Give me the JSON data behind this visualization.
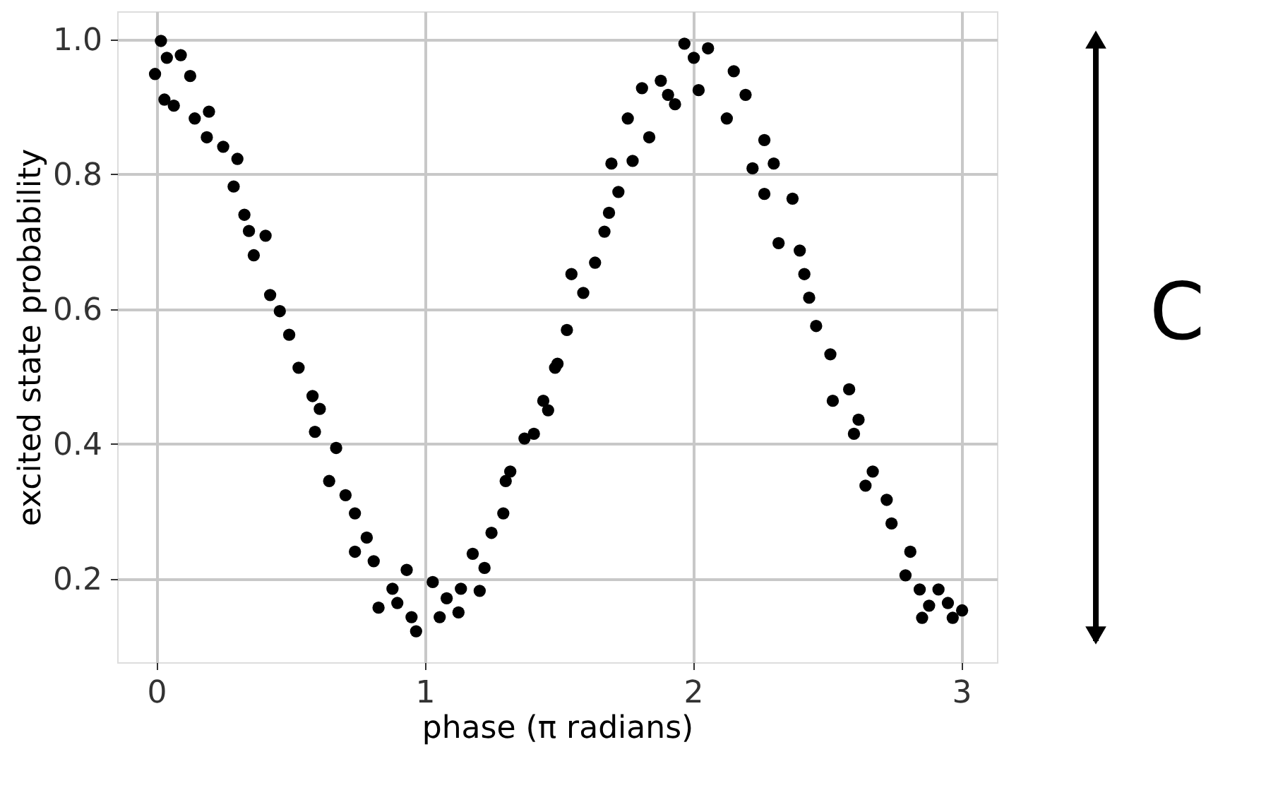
{
  "chart_data": {
    "type": "scatter",
    "xlabel": "phase (π radians)",
    "ylabel": "excited state  probability",
    "xlim": [
      -0.146,
      3.133
    ],
    "ylim": [
      0.076,
      1.042
    ],
    "xticks": [
      0,
      1,
      2,
      3
    ],
    "yticks": [
      0.2,
      0.4,
      0.6,
      0.8,
      {
        "value": 1,
        "label": "1.0"
      }
    ],
    "grid": true,
    "marker": "circle",
    "annotations": [
      "C"
    ],
    "series": [
      {
        "color": "#000000",
        "x": [
          0.017,
          -0.005,
          0.039,
          0.091,
          0.126,
          0.03,
          0.065,
          0.143,
          0.196,
          0.188,
          0.249,
          0.302,
          0.288,
          0.328,
          0.345,
          0.407,
          0.363,
          0.424,
          0.46,
          0.495,
          0.53,
          0.582,
          0.609,
          0.591,
          0.67,
          0.644,
          0.705,
          0.74,
          0.784,
          0.74,
          0.81,
          0.933,
          0.88,
          0.828,
          0.898,
          0.968,
          0.951,
          1.03,
          1.056,
          1.082,
          1.135,
          1.126,
          1.205,
          1.179,
          1.223,
          1.249,
          1.293,
          1.319,
          1.302,
          1.372,
          1.407,
          1.442,
          1.46,
          1.486,
          1.495,
          1.53,
          1.547,
          1.591,
          1.635,
          1.67,
          1.687,
          1.722,
          1.696,
          1.775,
          1.837,
          1.757,
          1.81,
          1.88,
          1.933,
          1.907,
          1.968,
          2.003,
          2.056,
          2.021,
          2.152,
          2.196,
          2.126,
          2.266,
          2.301,
          2.222,
          2.266,
          2.371,
          2.319,
          2.398,
          2.415,
          2.433,
          2.459,
          2.512,
          2.521,
          2.582,
          2.6,
          2.617,
          2.67,
          2.643,
          2.722,
          2.74,
          2.81,
          2.792,
          2.845,
          2.854,
          2.915,
          2.95,
          3.003,
          2.968,
          2.88
        ],
        "values": [
          0.998,
          0.949,
          0.973,
          0.977,
          0.946,
          0.911,
          0.902,
          0.883,
          0.893,
          0.855,
          0.841,
          0.823,
          0.782,
          0.74,
          0.716,
          0.709,
          0.68,
          0.621,
          0.597,
          0.562,
          0.513,
          0.471,
          0.452,
          0.418,
          0.394,
          0.345,
          0.324,
          0.297,
          0.261,
          0.24,
          0.226,
          0.213,
          0.185,
          0.157,
          0.164,
          0.122,
          0.143,
          0.195,
          0.143,
          0.171,
          0.185,
          0.15,
          0.182,
          0.237,
          0.216,
          0.268,
          0.297,
          0.359,
          0.345,
          0.408,
          0.415,
          0.464,
          0.45,
          0.513,
          0.519,
          0.569,
          0.652,
          0.624,
          0.669,
          0.715,
          0.743,
          0.774,
          0.816,
          0.82,
          0.855,
          0.883,
          0.928,
          0.939,
          0.904,
          0.918,
          0.994,
          0.973,
          0.987,
          0.925,
          0.953,
          0.918,
          0.883,
          0.851,
          0.816,
          0.809,
          0.771,
          0.764,
          0.698,
          0.687,
          0.652,
          0.617,
          0.575,
          0.533,
          0.464,
          0.481,
          0.415,
          0.436,
          0.359,
          0.338,
          0.317,
          0.282,
          0.24,
          0.205,
          0.184,
          0.142,
          0.184,
          0.164,
          0.153,
          0.142,
          0.16
        ]
      }
    ]
  }
}
